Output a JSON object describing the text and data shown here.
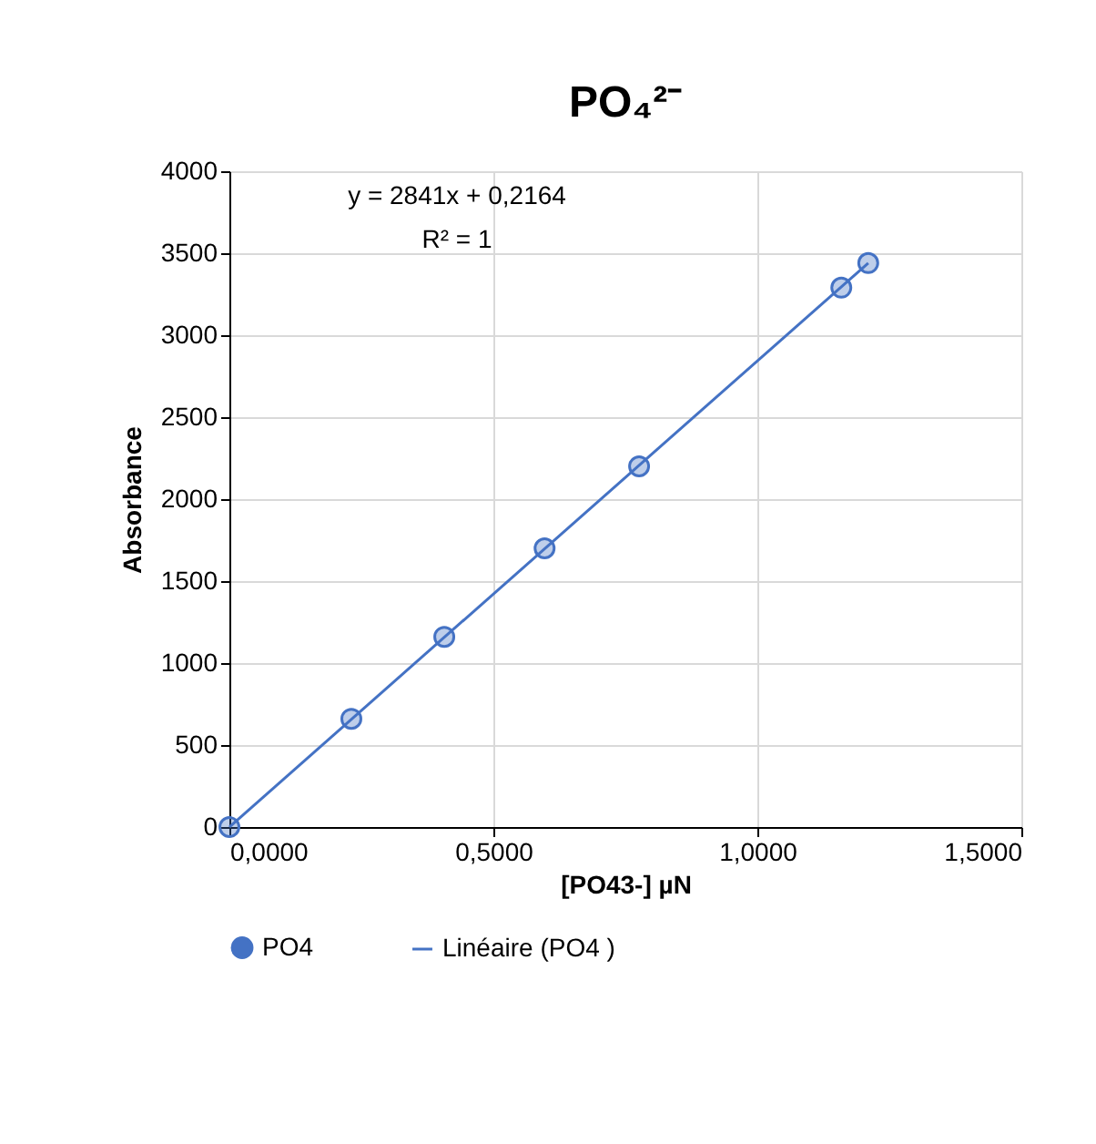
{
  "chart_data": {
    "type": "scatter",
    "title": "PO₄²⁻",
    "xlabel": "[PO43-] µN",
    "ylabel": "Absorbance",
    "xlim": [
      0,
      1.5
    ],
    "xticks": [
      {
        "value": 0,
        "label": "0,0000"
      },
      {
        "value": 0.5,
        "label": "0,5000"
      },
      {
        "value": 1,
        "label": "1,0000"
      },
      {
        "value": 1.5,
        "label": "1,5000"
      }
    ],
    "ylim": [
      0,
      4000
    ],
    "yticks": [
      0,
      500,
      1000,
      1500,
      2000,
      2500,
      3000,
      3500,
      4000
    ],
    "grid": true,
    "legend": "bottom",
    "annotations": [
      "y = 2841x + 0,2164",
      "R² = 1"
    ],
    "series": [
      {
        "name": "PO4",
        "marker": "circle",
        "color": "#4472c4",
        "x": [
          0,
          0.231,
          0.407,
          0.597,
          0.776,
          1.159,
          1.21
        ],
        "values": [
          0,
          660,
          1160,
          1700,
          2200,
          3290,
          3440
        ]
      },
      {
        "name": "Linéaire (PO4 )",
        "type": "line",
        "color": "#4472c4",
        "line_style": "solid",
        "x": [
          0,
          1.21
        ],
        "values": [
          0,
          3440
        ]
      }
    ]
  }
}
